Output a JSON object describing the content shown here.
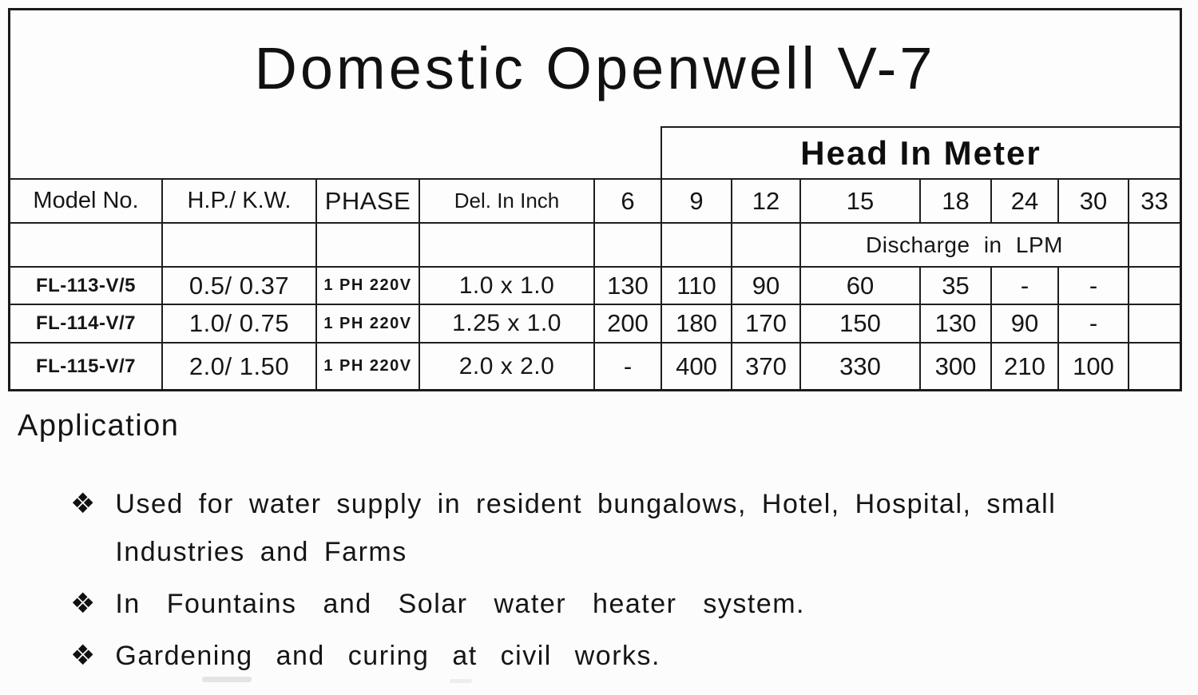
{
  "document": {
    "title": "Domestic Openwell V-7"
  },
  "table": {
    "head_group_label": "Head In Meter",
    "discharge_label": "Discharge in LPM",
    "col_headers": {
      "model": "Model No.",
      "hp_kw": "H.P./ K.W.",
      "phase": "PHASE",
      "del_inch": "Del. In Inch"
    },
    "head_values": [
      "6",
      "9",
      "12",
      "15",
      "18",
      "24",
      "30",
      "33"
    ],
    "rows": [
      {
        "model": "FL-113-V/5",
        "hp_kw": "0.5/ 0.37",
        "phase": "1 PH 220V",
        "del_inch": "1.0 x 1.0",
        "discharge": [
          "130",
          "110",
          "90",
          "60",
          "35",
          "-",
          "-",
          ""
        ]
      },
      {
        "model": "FL-114-V/7",
        "hp_kw": "1.0/ 0.75",
        "phase": "1 PH 220V",
        "del_inch": "1.25 x 1.0",
        "discharge": [
          "200",
          "180",
          "170",
          "150",
          "130",
          "90",
          "-",
          ""
        ]
      },
      {
        "model": "FL-115-V/7",
        "hp_kw": "2.0/ 1.50",
        "phase": "1 PH 220V",
        "del_inch": "2.0 x 2.0",
        "discharge": [
          "-",
          "400",
          "370",
          "330",
          "300",
          "210",
          "100",
          ""
        ]
      }
    ]
  },
  "application": {
    "heading": "Application",
    "bullet_icon": "❖",
    "items": [
      {
        "lines": [
          "Used for water supply in resident bungalows, Hotel, Hospital, small",
          "Industries and Farms"
        ]
      },
      {
        "lines": [
          "In Fountains and Solar water heater system."
        ]
      },
      {
        "lines": [
          "Gardening and curing at civil works."
        ]
      }
    ]
  }
}
